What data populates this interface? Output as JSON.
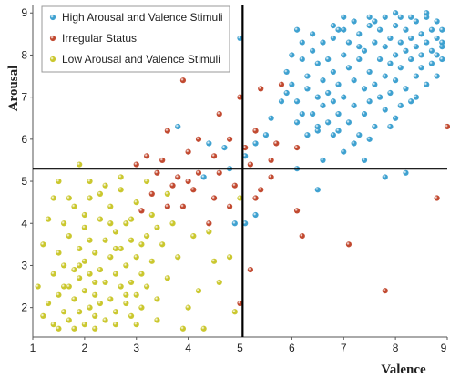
{
  "chart_data": {
    "type": "scatter",
    "xlabel": "Valence",
    "ylabel": "Arousal",
    "xlim": [
      1,
      9
    ],
    "ylim": [
      1.3,
      9.2
    ],
    "x_ticks": [
      "1",
      "2",
      "3",
      "4",
      "5",
      "6",
      "7",
      "8",
      "9"
    ],
    "y_ticks": [
      "2",
      "3",
      "4",
      "5",
      "6",
      "7",
      "8",
      "9"
    ],
    "grid": false,
    "legend_position": "top-left",
    "threshold_lines": {
      "valence": 5.05,
      "arousal": 5.3
    },
    "series": [
      {
        "name": "High Arousal and Valence Stimuli",
        "color": "#3a9fcf",
        "points": [
          [
            5.0,
            8.4
          ],
          [
            3.8,
            6.3
          ],
          [
            4.4,
            5.9
          ],
          [
            4.7,
            5.8
          ],
          [
            5.1,
            5.6
          ],
          [
            5.3,
            5.9
          ],
          [
            5.5,
            6.1
          ],
          [
            5.6,
            6.5
          ],
          [
            5.8,
            6.9
          ],
          [
            5.9,
            7.1
          ],
          [
            5.9,
            7.6
          ],
          [
            6.0,
            7.3
          ],
          [
            6.0,
            8.0
          ],
          [
            6.1,
            6.4
          ],
          [
            6.1,
            6.9
          ],
          [
            6.1,
            8.6
          ],
          [
            6.2,
            7.9
          ],
          [
            6.3,
            6.1
          ],
          [
            6.3,
            7.2
          ],
          [
            6.3,
            7.5
          ],
          [
            6.4,
            6.6
          ],
          [
            6.4,
            8.1
          ],
          [
            6.4,
            8.5
          ],
          [
            6.5,
            6.2
          ],
          [
            6.5,
            7.0
          ],
          [
            6.5,
            7.8
          ],
          [
            6.5,
            4.8
          ],
          [
            6.6,
            6.8
          ],
          [
            6.6,
            7.4
          ],
          [
            6.6,
            8.3
          ],
          [
            6.7,
            6.4
          ],
          [
            6.7,
            7.1
          ],
          [
            6.7,
            7.9
          ],
          [
            6.8,
            6.9
          ],
          [
            6.8,
            7.6
          ],
          [
            6.8,
            8.4
          ],
          [
            6.9,
            6.2
          ],
          [
            6.9,
            6.6
          ],
          [
            6.9,
            7.3
          ],
          [
            7.0,
            8.0
          ],
          [
            7.0,
            8.6
          ],
          [
            7.0,
            7.0
          ],
          [
            7.1,
            7.7
          ],
          [
            7.1,
            6.4
          ],
          [
            7.1,
            8.3
          ],
          [
            7.2,
            6.8
          ],
          [
            7.2,
            7.4
          ],
          [
            7.2,
            8.8
          ],
          [
            7.3,
            6.1
          ],
          [
            7.3,
            7.9
          ],
          [
            7.3,
            8.5
          ],
          [
            7.4,
            7.2
          ],
          [
            7.4,
            6.6
          ],
          [
            7.4,
            8.1
          ],
          [
            7.5,
            7.6
          ],
          [
            7.5,
            8.7
          ],
          [
            7.5,
            6.9
          ],
          [
            7.6,
            8.3
          ],
          [
            7.6,
            7.3
          ],
          [
            7.6,
            6.3
          ],
          [
            7.7,
            7.9
          ],
          [
            7.7,
            8.6
          ],
          [
            7.7,
            7.0
          ],
          [
            7.8,
            8.2
          ],
          [
            7.8,
            7.5
          ],
          [
            7.8,
            6.7
          ],
          [
            7.8,
            8.9
          ],
          [
            7.9,
            7.8
          ],
          [
            7.9,
            8.4
          ],
          [
            7.9,
            7.1
          ],
          [
            8.0,
            8.0
          ],
          [
            8.0,
            8.7
          ],
          [
            8.0,
            7.4
          ],
          [
            8.0,
            6.5
          ],
          [
            8.1,
            8.3
          ],
          [
            8.1,
            7.7
          ],
          [
            8.1,
            8.9
          ],
          [
            8.2,
            8.1
          ],
          [
            8.2,
            7.2
          ],
          [
            8.2,
            8.6
          ],
          [
            8.3,
            7.9
          ],
          [
            8.3,
            8.4
          ],
          [
            8.3,
            6.9
          ],
          [
            8.4,
            8.2
          ],
          [
            8.4,
            8.8
          ],
          [
            8.4,
            7.5
          ],
          [
            8.5,
            8.0
          ],
          [
            8.5,
            8.5
          ],
          [
            8.5,
            7.7
          ],
          [
            8.6,
            8.3
          ],
          [
            8.6,
            8.9
          ],
          [
            8.6,
            7.3
          ],
          [
            8.7,
            8.1
          ],
          [
            8.7,
            8.6
          ],
          [
            8.7,
            7.8
          ],
          [
            8.8,
            8.4
          ],
          [
            8.8,
            8.8
          ],
          [
            8.8,
            7.5
          ],
          [
            8.9,
            8.2
          ],
          [
            8.9,
            8.6
          ],
          [
            8.9,
            7.9
          ],
          [
            8.2,
            5.2
          ],
          [
            7.8,
            5.1
          ],
          [
            7.4,
            5.5
          ],
          [
            7.0,
            5.7
          ],
          [
            6.6,
            5.5
          ],
          [
            6.1,
            5.3
          ],
          [
            5.3,
            4.2
          ],
          [
            5.1,
            4.0
          ],
          [
            4.9,
            4.0
          ],
          [
            4.3,
            5.1
          ],
          [
            4.8,
            5.3
          ],
          [
            7.6,
            8.8
          ],
          [
            7.3,
            8.2
          ],
          [
            6.9,
            8.6
          ],
          [
            6.2,
            8.3
          ],
          [
            8.0,
            9.0
          ],
          [
            8.3,
            8.9
          ],
          [
            8.6,
            9.0
          ],
          [
            7.5,
            8.9
          ],
          [
            7.0,
            8.9
          ],
          [
            6.8,
            8.7
          ],
          [
            8.8,
            8.0
          ],
          [
            8.9,
            8.3
          ],
          [
            8.4,
            7.0
          ],
          [
            8.1,
            6.8
          ],
          [
            7.9,
            6.3
          ],
          [
            7.5,
            6.0
          ],
          [
            7.2,
            5.9
          ],
          [
            6.8,
            6.1
          ],
          [
            6.5,
            6.3
          ],
          [
            6.2,
            6.6
          ]
        ]
      },
      {
        "name": "Irregular Status",
        "color": "#c0452b",
        "points": [
          [
            3.9,
            7.4
          ],
          [
            4.6,
            6.6
          ],
          [
            5.0,
            7.0
          ],
          [
            5.4,
            7.2
          ],
          [
            5.8,
            7.3
          ],
          [
            3.6,
            6.2
          ],
          [
            4.2,
            6.0
          ],
          [
            4.8,
            6.0
          ],
          [
            5.3,
            6.2
          ],
          [
            5.7,
            5.9
          ],
          [
            6.1,
            5.8
          ],
          [
            3.2,
            5.6
          ],
          [
            3.5,
            5.5
          ],
          [
            4.0,
            5.7
          ],
          [
            4.5,
            5.6
          ],
          [
            5.1,
            5.8
          ],
          [
            5.6,
            5.5
          ],
          [
            3.4,
            5.2
          ],
          [
            3.8,
            5.1
          ],
          [
            4.2,
            5.2
          ],
          [
            4.6,
            5.2
          ],
          [
            5.2,
            5.4
          ],
          [
            3.3,
            4.7
          ],
          [
            3.7,
            4.9
          ],
          [
            4.1,
            4.8
          ],
          [
            4.5,
            4.6
          ],
          [
            4.9,
            4.9
          ],
          [
            5.4,
            4.8
          ],
          [
            3.1,
            4.3
          ],
          [
            3.9,
            4.4
          ],
          [
            4.4,
            4.0
          ],
          [
            4.8,
            4.4
          ],
          [
            5.3,
            4.6
          ],
          [
            6.1,
            4.3
          ],
          [
            6.2,
            3.7
          ],
          [
            7.1,
            3.5
          ],
          [
            5.2,
            2.9
          ],
          [
            5.0,
            2.1
          ],
          [
            7.8,
            2.4
          ],
          [
            8.8,
            4.6
          ],
          [
            9.0,
            6.3
          ],
          [
            5.6,
            5.1
          ],
          [
            4.0,
            5.0
          ],
          [
            3.6,
            4.4
          ],
          [
            3.0,
            5.4
          ]
        ]
      },
      {
        "name": "Low Arousal and Valence Stimuli",
        "color": "#c9c629",
        "points": [
          [
            1.2,
            3.5
          ],
          [
            1.3,
            2.1
          ],
          [
            1.3,
            4.1
          ],
          [
            1.4,
            1.6
          ],
          [
            1.4,
            2.8
          ],
          [
            1.5,
            3.3
          ],
          [
            1.5,
            2.3
          ],
          [
            1.6,
            4.0
          ],
          [
            1.6,
            1.9
          ],
          [
            1.6,
            3.0
          ],
          [
            1.7,
            2.5
          ],
          [
            1.7,
            3.7
          ],
          [
            1.7,
            1.7
          ],
          [
            1.8,
            2.9
          ],
          [
            1.8,
            4.4
          ],
          [
            1.8,
            2.2
          ],
          [
            1.9,
            3.4
          ],
          [
            1.9,
            1.9
          ],
          [
            1.9,
            2.7
          ],
          [
            2.0,
            3.9
          ],
          [
            2.0,
            2.4
          ],
          [
            2.0,
            1.6
          ],
          [
            2.0,
            3.1
          ],
          [
            2.1,
            2.0
          ],
          [
            2.1,
            3.6
          ],
          [
            2.1,
            2.8
          ],
          [
            2.1,
            4.6
          ],
          [
            2.2,
            2.3
          ],
          [
            2.2,
            3.3
          ],
          [
            2.2,
            1.8
          ],
          [
            2.3,
            2.9
          ],
          [
            2.3,
            4.1
          ],
          [
            2.3,
            2.1
          ],
          [
            2.4,
            3.6
          ],
          [
            2.4,
            1.7
          ],
          [
            2.4,
            2.6
          ],
          [
            2.5,
            3.2
          ],
          [
            2.5,
            4.4
          ],
          [
            2.5,
            2.2
          ],
          [
            2.6,
            2.8
          ],
          [
            2.6,
            3.8
          ],
          [
            2.6,
            1.9
          ],
          [
            2.7,
            2.5
          ],
          [
            2.7,
            3.4
          ],
          [
            2.7,
            4.8
          ],
          [
            2.8,
            2.1
          ],
          [
            2.8,
            3.0
          ],
          [
            2.8,
            4.0
          ],
          [
            2.9,
            2.6
          ],
          [
            2.9,
            1.8
          ],
          [
            2.9,
            3.6
          ],
          [
            3.0,
            2.3
          ],
          [
            3.0,
            3.2
          ],
          [
            3.0,
            4.5
          ],
          [
            3.1,
            2.8
          ],
          [
            3.1,
            2.0
          ],
          [
            3.2,
            3.7
          ],
          [
            3.2,
            2.5
          ],
          [
            3.3,
            4.2
          ],
          [
            3.3,
            3.1
          ],
          [
            3.4,
            2.2
          ],
          [
            3.5,
            3.5
          ],
          [
            3.6,
            2.7
          ],
          [
            3.7,
            4.0
          ],
          [
            3.8,
            3.2
          ],
          [
            3.9,
            1.5
          ],
          [
            4.0,
            2.0
          ],
          [
            4.1,
            3.7
          ],
          [
            4.2,
            2.4
          ],
          [
            4.4,
            3.8
          ],
          [
            4.5,
            3.1
          ],
          [
            4.6,
            2.6
          ],
          [
            4.8,
            3.2
          ],
          [
            4.9,
            1.9
          ],
          [
            5.0,
            4.6
          ],
          [
            1.4,
            4.6
          ],
          [
            1.5,
            5.0
          ],
          [
            1.9,
            5.4
          ],
          [
            2.1,
            5.0
          ],
          [
            2.4,
            4.9
          ],
          [
            2.7,
            5.1
          ],
          [
            3.2,
            5.0
          ],
          [
            3.6,
            4.7
          ],
          [
            1.1,
            2.5
          ],
          [
            1.2,
            1.8
          ],
          [
            1.5,
            1.5
          ],
          [
            1.8,
            1.5
          ],
          [
            2.2,
            1.5
          ],
          [
            2.6,
            1.6
          ],
          [
            3.0,
            1.6
          ],
          [
            3.4,
            1.7
          ],
          [
            4.3,
            1.5
          ],
          [
            2.0,
            4.2
          ],
          [
            1.7,
            4.6
          ],
          [
            2.3,
            4.7
          ],
          [
            2.9,
            4.1
          ],
          [
            3.4,
            3.9
          ],
          [
            2.5,
            4.0
          ],
          [
            1.9,
            3.0
          ],
          [
            2.2,
            2.6
          ],
          [
            1.6,
            2.5
          ],
          [
            2.6,
            3.4
          ],
          [
            2.8,
            2.3
          ],
          [
            3.1,
            3.5
          ]
        ]
      }
    ]
  }
}
